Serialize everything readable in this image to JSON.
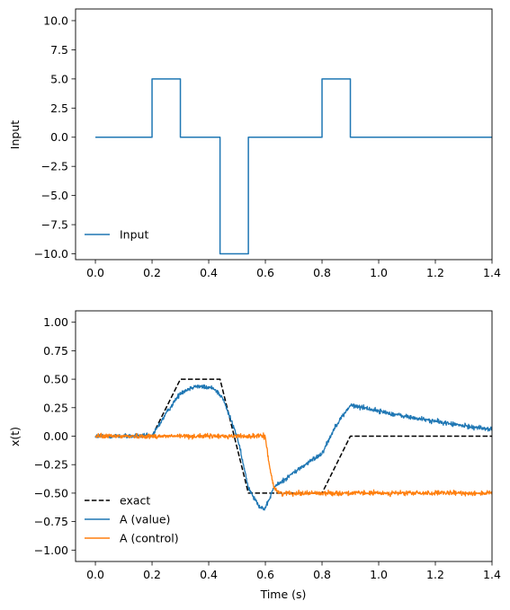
{
  "chart_data": [
    {
      "type": "line",
      "title": "",
      "xlabel": "",
      "ylabel": "Input",
      "xlim": [
        -0.07,
        1.4
      ],
      "ylim": [
        -10.5,
        11.0
      ],
      "xticks": [
        "0.0",
        "0.2",
        "0.4",
        "0.6",
        "0.8",
        "1.0",
        "1.2",
        "1.4"
      ],
      "xtick_values": [
        0.0,
        0.2,
        0.4,
        0.6,
        0.8,
        1.0,
        1.2,
        1.4
      ],
      "yticks": [
        "−10.0",
        "−7.5",
        "−5.0",
        "−2.5",
        "0.0",
        "2.5",
        "5.0",
        "7.5",
        "10.0"
      ],
      "ytick_values": [
        -10.0,
        -7.5,
        -5.0,
        -2.5,
        0.0,
        2.5,
        5.0,
        7.5,
        10.0
      ],
      "grid": false,
      "legend_position": "lower-left",
      "series": [
        {
          "name": "Input",
          "color": "#1f77b4",
          "style": "solid",
          "x": [
            0.0,
            0.2,
            0.2,
            0.3,
            0.3,
            0.44,
            0.44,
            0.54,
            0.54,
            0.8,
            0.8,
            0.9,
            0.9,
            1.4
          ],
          "y": [
            0,
            0,
            5,
            5,
            0,
            0,
            -10,
            -10,
            0,
            0,
            5,
            5,
            0,
            0
          ]
        }
      ]
    },
    {
      "type": "line",
      "title": "",
      "xlabel": "Time (s)",
      "ylabel": "x(t)",
      "xlim": [
        -0.07,
        1.4
      ],
      "ylim": [
        -1.1,
        1.1
      ],
      "xticks": [
        "0.0",
        "0.2",
        "0.4",
        "0.6",
        "0.8",
        "1.0",
        "1.2",
        "1.4"
      ],
      "xtick_values": [
        0.0,
        0.2,
        0.4,
        0.6,
        0.8,
        1.0,
        1.2,
        1.4
      ],
      "yticks": [
        "−1.00",
        "−0.75",
        "−0.50",
        "−0.25",
        "0.00",
        "0.25",
        "0.50",
        "0.75",
        "1.00"
      ],
      "ytick_values": [
        -1.0,
        -0.75,
        -0.5,
        -0.25,
        0.0,
        0.25,
        0.5,
        0.75,
        1.0
      ],
      "grid": false,
      "legend_position": "lower-left",
      "series": [
        {
          "name": "exact",
          "color": "#000000",
          "style": "dashed",
          "x": [
            0.0,
            0.2,
            0.3,
            0.44,
            0.54,
            0.8,
            0.9,
            1.4
          ],
          "y": [
            0.0,
            0.0,
            0.5,
            0.5,
            -0.5,
            -0.5,
            0.0,
            0.0
          ]
        },
        {
          "name": "A (value)",
          "color": "#1f77b4",
          "style": "noisy",
          "noise": 0.02,
          "x": [
            0.0,
            0.2,
            0.25,
            0.3,
            0.35,
            0.42,
            0.45,
            0.5,
            0.54,
            0.58,
            0.6,
            0.63,
            0.7,
            0.8,
            0.85,
            0.9,
            0.95,
            1.0,
            1.1,
            1.2,
            1.3,
            1.4
          ],
          "y": [
            0.0,
            0.0,
            0.2,
            0.38,
            0.44,
            0.42,
            0.33,
            0.0,
            -0.45,
            -0.62,
            -0.64,
            -0.45,
            -0.32,
            -0.15,
            0.1,
            0.27,
            0.25,
            0.22,
            0.17,
            0.13,
            0.09,
            0.06
          ]
        },
        {
          "name": "A (control)",
          "color": "#ff7f0e",
          "style": "noisy",
          "noise": 0.02,
          "x": [
            0.0,
            0.58,
            0.6,
            0.61,
            0.63,
            0.65,
            0.7,
            1.4
          ],
          "y": [
            0.0,
            0.0,
            0.0,
            -0.2,
            -0.45,
            -0.5,
            -0.5,
            -0.5
          ]
        }
      ]
    }
  ]
}
